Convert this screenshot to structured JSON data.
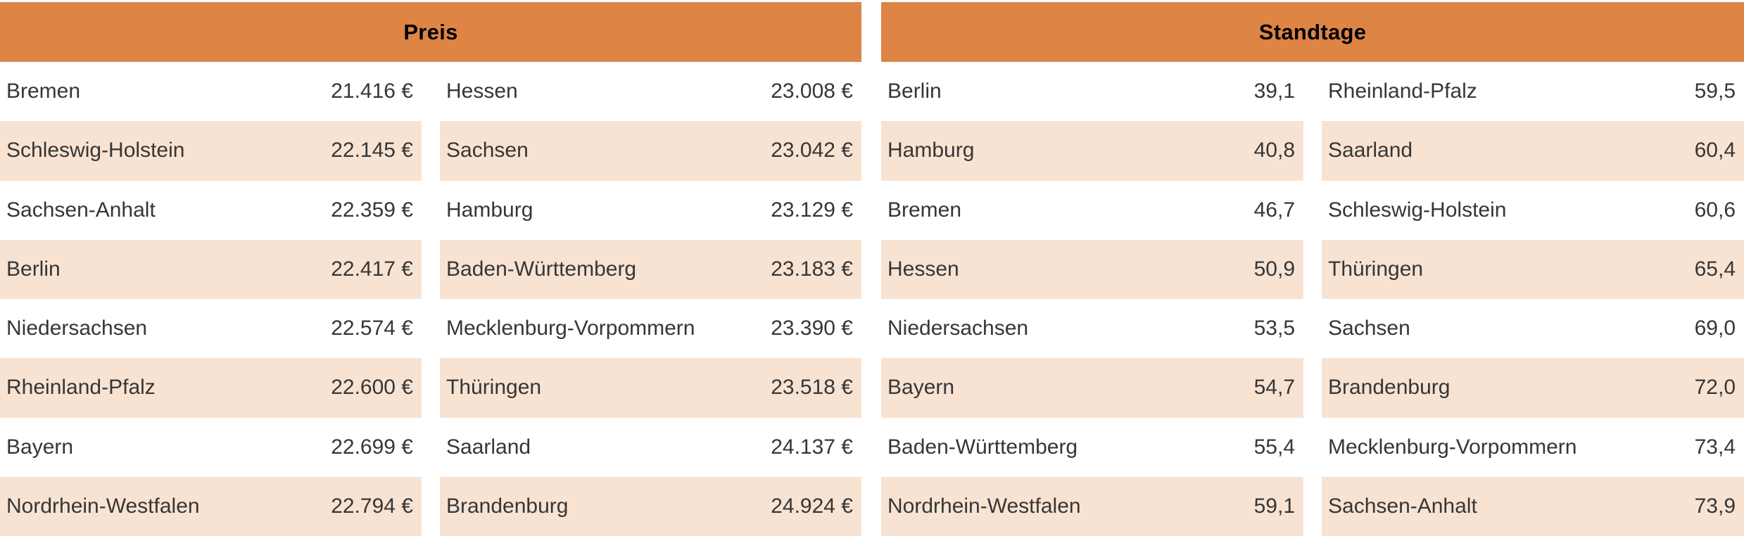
{
  "colors": {
    "header_bg": "#de8546",
    "header_text": "#000000",
    "row_alt_bg": "#f8e3d3",
    "row_text": "#363636"
  },
  "sections": [
    {
      "id": "preis",
      "title": "Preis",
      "columns": [
        {
          "rows": [
            {
              "label": "Bremen",
              "value": "21.416 €"
            },
            {
              "label": "Schleswig-Holstein",
              "value": "22.145 €"
            },
            {
              "label": "Sachsen-Anhalt",
              "value": "22.359 €"
            },
            {
              "label": "Berlin",
              "value": "22.417 €"
            },
            {
              "label": "Niedersachsen",
              "value": "22.574 €"
            },
            {
              "label": "Rheinland-Pfalz",
              "value": "22.600 €"
            },
            {
              "label": "Bayern",
              "value": "22.699 €"
            },
            {
              "label": "Nordrhein-Westfalen",
              "value": "22.794 €"
            }
          ]
        },
        {
          "rows": [
            {
              "label": "Hessen",
              "value": "23.008 €"
            },
            {
              "label": "Sachsen",
              "value": "23.042 €"
            },
            {
              "label": "Hamburg",
              "value": "23.129 €"
            },
            {
              "label": "Baden-Württemberg",
              "value": "23.183 €"
            },
            {
              "label": "Mecklenburg-Vorpommern",
              "value": "23.390 €"
            },
            {
              "label": "Thüringen",
              "value": "23.518 €"
            },
            {
              "label": "Saarland",
              "value": "24.137 €"
            },
            {
              "label": "Brandenburg",
              "value": "24.924 €"
            }
          ]
        }
      ]
    },
    {
      "id": "standtage",
      "title": "Standtage",
      "columns": [
        {
          "rows": [
            {
              "label": "Berlin",
              "value": "39,1"
            },
            {
              "label": "Hamburg",
              "value": "40,8"
            },
            {
              "label": "Bremen",
              "value": "46,7"
            },
            {
              "label": "Hessen",
              "value": "50,9"
            },
            {
              "label": "Niedersachsen",
              "value": "53,5"
            },
            {
              "label": "Bayern",
              "value": "54,7"
            },
            {
              "label": "Baden-Württemberg",
              "value": "55,4"
            },
            {
              "label": "Nordrhein-Westfalen",
              "value": "59,1"
            }
          ]
        },
        {
          "rows": [
            {
              "label": "Rheinland-Pfalz",
              "value": "59,5"
            },
            {
              "label": "Saarland",
              "value": "60,4"
            },
            {
              "label": "Schleswig-Holstein",
              "value": "60,6"
            },
            {
              "label": "Thüringen",
              "value": "65,4"
            },
            {
              "label": "Sachsen",
              "value": "69,0"
            },
            {
              "label": "Brandenburg",
              "value": "72,0"
            },
            {
              "label": "Mecklenburg-Vorpommern",
              "value": "73,4"
            },
            {
              "label": "Sachsen-Anhalt",
              "value": "73,9"
            }
          ]
        }
      ]
    }
  ],
  "chart_data": [
    {
      "type": "table",
      "title": "Preis",
      "value_format": "euro, thousands separator dot, suffix ' €'",
      "categories": [
        "Bremen",
        "Schleswig-Holstein",
        "Sachsen-Anhalt",
        "Berlin",
        "Niedersachsen",
        "Rheinland-Pfalz",
        "Bayern",
        "Nordrhein-Westfalen",
        "Hessen",
        "Sachsen",
        "Hamburg",
        "Baden-Württemberg",
        "Mecklenburg-Vorpommern",
        "Thüringen",
        "Saarland",
        "Brandenburg"
      ],
      "values": [
        21416,
        22145,
        22359,
        22417,
        22574,
        22600,
        22699,
        22794,
        23008,
        23042,
        23129,
        23183,
        23390,
        23518,
        24137,
        24924
      ],
      "layout": "two side-by-side columns of 8 rows, sorted ascending, alternating white/peach row stripes, orange header band"
    },
    {
      "type": "table",
      "title": "Standtage",
      "value_format": "decimal comma, one decimal place",
      "categories": [
        "Berlin",
        "Hamburg",
        "Bremen",
        "Hessen",
        "Niedersachsen",
        "Bayern",
        "Baden-Württemberg",
        "Nordrhein-Westfalen",
        "Rheinland-Pfalz",
        "Saarland",
        "Schleswig-Holstein",
        "Thüringen",
        "Sachsen",
        "Brandenburg",
        "Mecklenburg-Vorpommern",
        "Sachsen-Anhalt"
      ],
      "values": [
        39.1,
        40.8,
        46.7,
        50.9,
        53.5,
        54.7,
        55.4,
        59.1,
        59.5,
        60.4,
        60.6,
        65.4,
        69.0,
        72.0,
        73.4,
        73.9
      ],
      "layout": "two side-by-side columns of 8 rows, sorted ascending, alternating white/peach row stripes, orange header band"
    }
  ]
}
